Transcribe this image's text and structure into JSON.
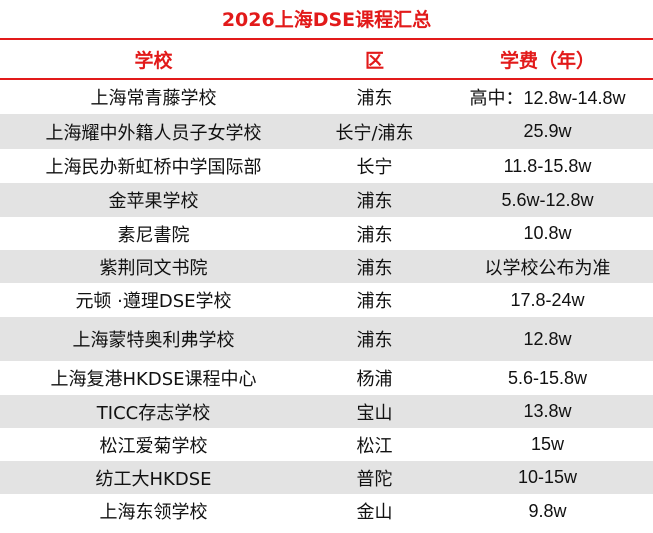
{
  "title": "2026上海DSE课程汇总",
  "header": {
    "school": "学校",
    "district": "区",
    "fee": "学费（年）"
  },
  "rows": [
    {
      "school": "上海常青藤学校",
      "district": "浦东",
      "fee": "高中：12.8w-14.8w"
    },
    {
      "school": "上海耀中外籍人员子女学校",
      "district": "长宁/浦东",
      "fee": "25.9w"
    },
    {
      "school": "上海民办新虹桥中学国际部",
      "district": "长宁",
      "fee": "11.8-15.8w"
    },
    {
      "school": "金苹果学校",
      "district": "浦东",
      "fee": "5.6w-12.8w"
    },
    {
      "school": "素尼書院",
      "district": "浦东",
      "fee": "10.8w"
    },
    {
      "school": "紫荆同文书院",
      "district": "浦东",
      "fee": "以学校公布为准"
    },
    {
      "school": "元顿 ·遵理DSE学校",
      "district": "浦东",
      "fee": "17.8-24w"
    },
    {
      "school": "上海蒙特奥利弗学校",
      "district": "浦东",
      "fee": "12.8w"
    },
    {
      "school": "上海复港HKDSE课程中心",
      "district": "杨浦",
      "fee": "5.6-15.8w"
    },
    {
      "school": "TICC存志学校",
      "district": "宝山",
      "fee": "13.8w"
    },
    {
      "school": "松江爱菊学校",
      "district": "松江",
      "fee": "15w"
    },
    {
      "school": "纺工大HKDSE",
      "district": "普陀",
      "fee": "10-15w"
    },
    {
      "school": "上海东领学校",
      "district": "金山",
      "fee": "9.8w"
    }
  ],
  "colors": {
    "accent": "#e21a1a",
    "stripe": "#e3e3e3",
    "text": "#111111"
  }
}
